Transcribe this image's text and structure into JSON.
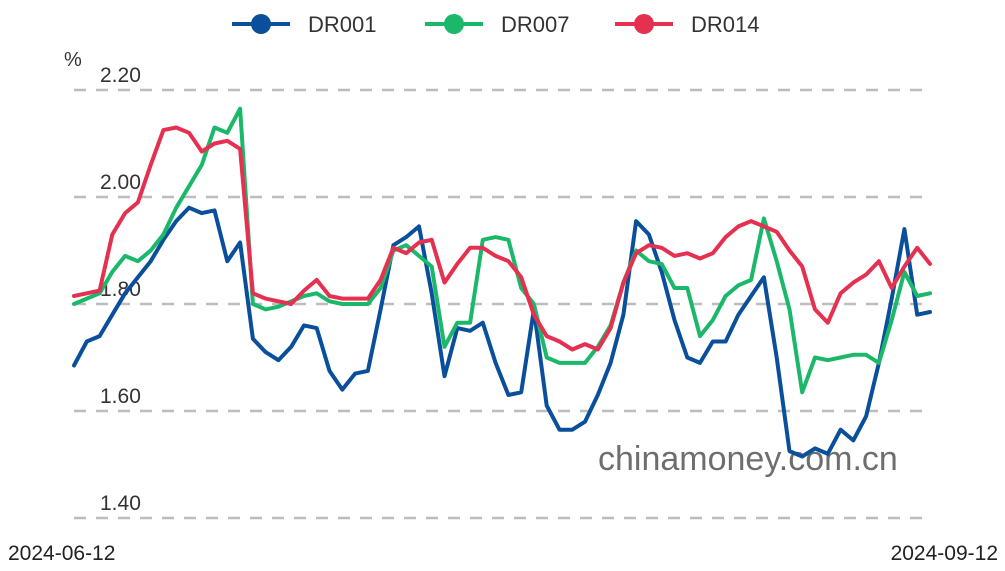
{
  "chart_data": {
    "type": "line",
    "ylabel": "%",
    "ylim": [
      1.4,
      2.2
    ],
    "yticks": [
      "2.20",
      "2.00",
      "1.80",
      "1.60",
      "1.40"
    ],
    "ytick_values": [
      2.2,
      2.0,
      1.8,
      1.6,
      1.4
    ],
    "x_start_label": "2024-06-12",
    "x_end_label": "2024-09-12",
    "grid": true,
    "legend_position": "top",
    "watermark": "chinamoney.com.cn",
    "series": [
      {
        "name": "DR001",
        "color": "#0a4f9c",
        "values": [
          1.685,
          1.73,
          1.74,
          1.78,
          1.82,
          1.85,
          1.88,
          1.92,
          1.955,
          1.98,
          1.97,
          1.975,
          1.88,
          1.915,
          1.735,
          1.71,
          1.695,
          1.72,
          1.76,
          1.755,
          1.675,
          1.64,
          1.67,
          1.675,
          1.79,
          1.91,
          1.925,
          1.945,
          1.82,
          1.665,
          1.755,
          1.75,
          1.765,
          1.69,
          1.63,
          1.635,
          1.79,
          1.61,
          1.565,
          1.565,
          1.58,
          1.63,
          1.69,
          1.78,
          1.955,
          1.93,
          1.86,
          1.77,
          1.7,
          1.69,
          1.73,
          1.73,
          1.78,
          1.815,
          1.85,
          1.7,
          1.525,
          1.515,
          1.53,
          1.52,
          1.565,
          1.545,
          1.59,
          1.69,
          1.81,
          1.94,
          1.78,
          1.785
        ]
      },
      {
        "name": "DR007",
        "color": "#1cb86a",
        "values": [
          1.8,
          1.81,
          1.82,
          1.86,
          1.89,
          1.88,
          1.9,
          1.93,
          1.98,
          2.02,
          2.06,
          2.13,
          2.12,
          2.165,
          1.8,
          1.79,
          1.795,
          1.805,
          1.815,
          1.82,
          1.805,
          1.8,
          1.8,
          1.8,
          1.83,
          1.9,
          1.91,
          1.89,
          1.87,
          1.72,
          1.765,
          1.765,
          1.92,
          1.925,
          1.92,
          1.83,
          1.8,
          1.7,
          1.69,
          1.69,
          1.69,
          1.72,
          1.76,
          1.84,
          1.9,
          1.88,
          1.875,
          1.83,
          1.83,
          1.74,
          1.77,
          1.815,
          1.835,
          1.845,
          1.96,
          1.88,
          1.79,
          1.635,
          1.7,
          1.695,
          1.7,
          1.705,
          1.705,
          1.69,
          1.77,
          1.86,
          1.815,
          1.82
        ]
      },
      {
        "name": "DR014",
        "color": "#e53050",
        "values": [
          1.815,
          1.82,
          1.825,
          1.93,
          1.97,
          1.99,
          2.06,
          2.125,
          2.13,
          2.12,
          2.085,
          2.1,
          2.105,
          2.09,
          1.82,
          1.81,
          1.805,
          1.8,
          1.825,
          1.845,
          1.815,
          1.81,
          1.81,
          1.81,
          1.845,
          1.905,
          1.895,
          1.915,
          1.92,
          1.84,
          1.875,
          1.905,
          1.905,
          1.89,
          1.88,
          1.85,
          1.78,
          1.74,
          1.73,
          1.715,
          1.725,
          1.715,
          1.755,
          1.84,
          1.895,
          1.91,
          1.905,
          1.89,
          1.895,
          1.885,
          1.895,
          1.925,
          1.945,
          1.955,
          1.945,
          1.935,
          1.9,
          1.87,
          1.79,
          1.765,
          1.82,
          1.84,
          1.855,
          1.88,
          1.83,
          1.87,
          1.905,
          1.875
        ]
      }
    ]
  }
}
